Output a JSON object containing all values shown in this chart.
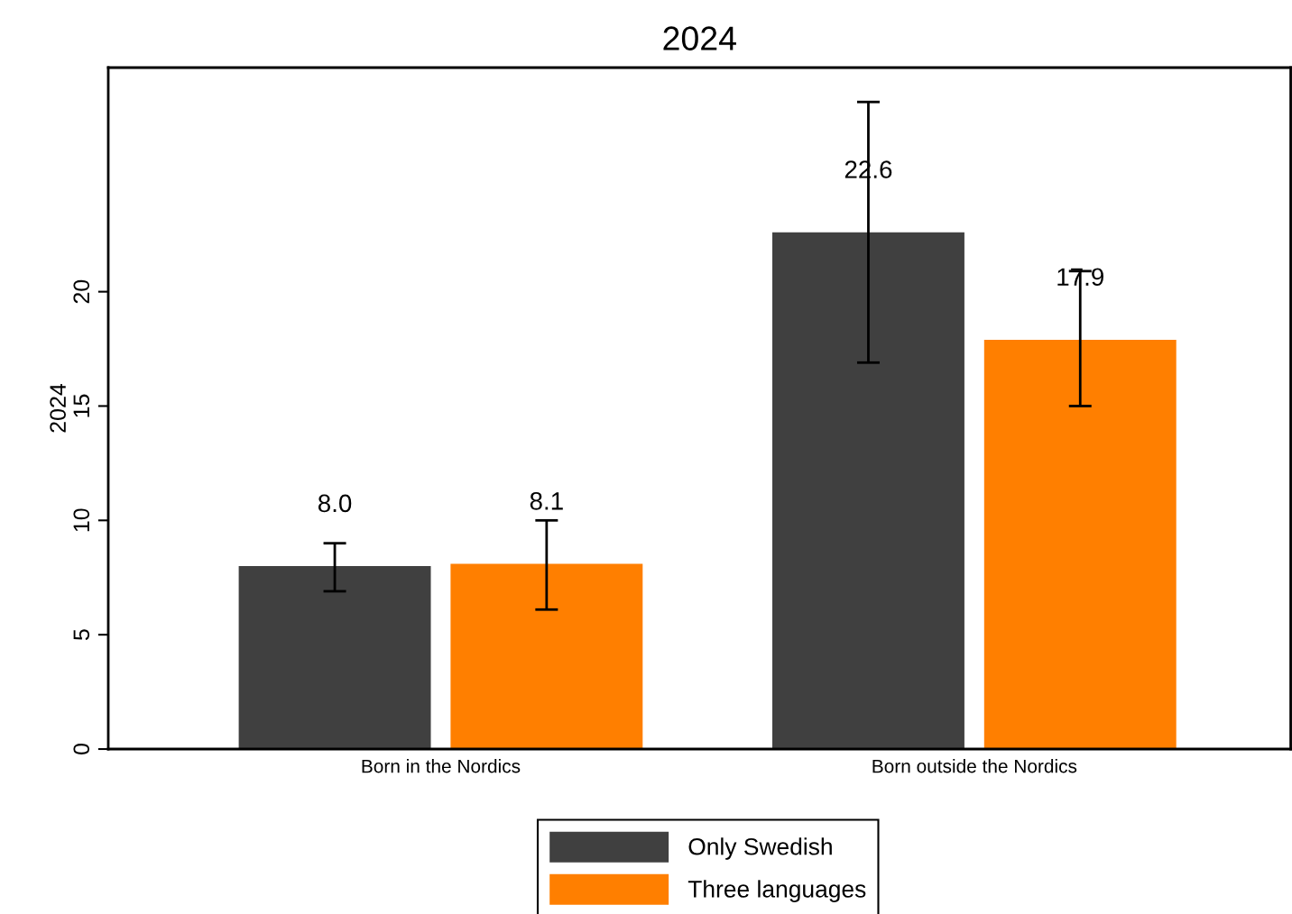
{
  "chart_data": {
    "type": "bar",
    "title": "2024",
    "ylabel": "2024",
    "categories": [
      "Born in the Nordics",
      "Born outside the Nordics"
    ],
    "series": [
      {
        "name": "Only Swedish",
        "color": "#404040",
        "values": [
          8.0,
          22.6
        ],
        "errors": [
          [
            6.9,
            9.0
          ],
          [
            16.9,
            28.3
          ]
        ],
        "value_labels": [
          "8.0",
          "22.6"
        ]
      },
      {
        "name": "Three languages",
        "color": "#ff7f00",
        "values": [
          8.1,
          17.9
        ],
        "errors": [
          [
            6.1,
            10.0
          ],
          [
            15.0,
            20.9
          ]
        ],
        "value_labels": [
          "8.1",
          "17.9"
        ]
      }
    ],
    "ylim": [
      0,
      29.8
    ],
    "yticks": [
      0,
      5,
      10,
      15,
      20
    ],
    "grid": false,
    "legend": "bottom"
  }
}
